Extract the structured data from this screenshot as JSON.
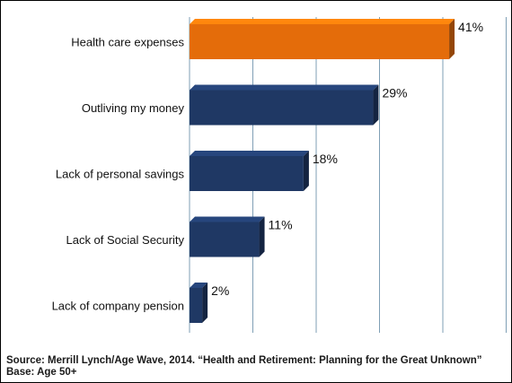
{
  "chart_data": {
    "type": "bar",
    "orientation": "horizontal",
    "categories": [
      "Health care expenses",
      "Outliving my money",
      "Lack of personal savings",
      "Lack of Social Security",
      "Lack of company pension"
    ],
    "values": [
      41,
      29,
      18,
      11,
      2
    ],
    "value_labels": [
      "41%",
      "29%",
      "18%",
      "11%",
      "2%"
    ],
    "xlim": [
      0,
      50
    ],
    "grid": true,
    "highlight_index": 0,
    "colors": {
      "highlight": "#E46C0A",
      "default": "#1F3864",
      "gridline": "#7F9FB5"
    }
  },
  "footnote": {
    "source": "Source: Merrill Lynch/Age Wave, 2014. “Health and Retirement: Planning for the Great Unknown”",
    "base": "Base:  Age 50+"
  }
}
